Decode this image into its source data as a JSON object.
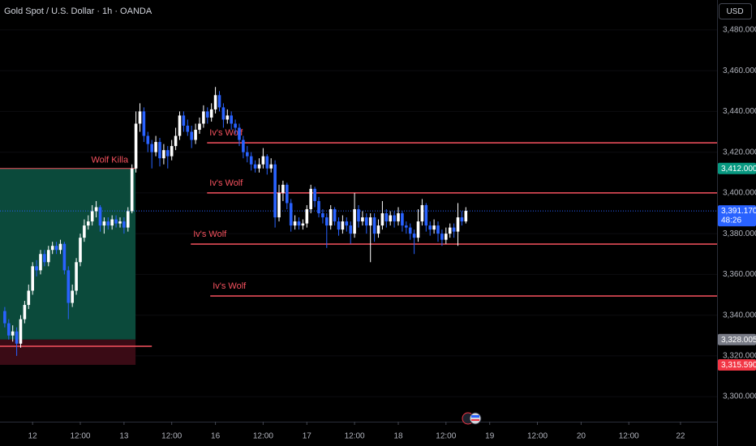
{
  "header": {
    "title": "Gold Spot / U.S. Dollar · 1h · OANDA",
    "currency": "USD"
  },
  "chart_data": {
    "type": "candlestick",
    "xlim": [
      -8.2,
      172.2
    ],
    "ylim": [
      3287.7,
      3494.7
    ],
    "xticks": [
      {
        "value": 0,
        "label": "12"
      },
      {
        "value": 12,
        "label": "12:00"
      },
      {
        "value": 23,
        "label": "13"
      },
      {
        "value": 35,
        "label": "12:00"
      },
      {
        "value": 46,
        "label": "16"
      },
      {
        "value": 58,
        "label": "12:00"
      },
      {
        "value": 69,
        "label": "17"
      },
      {
        "value": 81,
        "label": "12:00"
      },
      {
        "value": 92,
        "label": "18"
      },
      {
        "value": 104,
        "label": "12:00"
      },
      {
        "value": 115,
        "label": "19"
      },
      {
        "value": 127,
        "label": "12:00"
      },
      {
        "value": 138,
        "label": "20"
      },
      {
        "value": 150,
        "label": "12:00"
      },
      {
        "value": 163,
        "label": "22"
      }
    ],
    "yticks": [
      {
        "value": 3300,
        "label": "3,300.000"
      },
      {
        "value": 3320,
        "label": "3,320.000"
      },
      {
        "value": 3340,
        "label": "3,340.000"
      },
      {
        "value": 3360,
        "label": "3,360.000"
      },
      {
        "value": 3380,
        "label": "3,380.000"
      },
      {
        "value": 3400,
        "label": "3,400.000"
      },
      {
        "value": 3420,
        "label": "3,420.000"
      },
      {
        "value": 3440,
        "label": "3,440.000"
      },
      {
        "value": 3460,
        "label": "3,460.000"
      },
      {
        "value": 3480,
        "label": "3,480.000"
      }
    ],
    "up_color": "#ffffff",
    "down_color": "#2962ff",
    "candles": [
      [
        -7,
        3342,
        3344,
        3334,
        3336
      ],
      [
        -6,
        3336,
        3338,
        3328,
        3330
      ],
      [
        -5,
        3330,
        3335,
        3327,
        3332
      ],
      [
        -4,
        3332,
        3334,
        3320,
        3326
      ],
      [
        -3,
        3326,
        3340,
        3324,
        3338
      ],
      [
        -2,
        3338,
        3347,
        3336,
        3345
      ],
      [
        -1,
        3345,
        3355,
        3343,
        3352
      ],
      [
        0,
        3352,
        3366,
        3350,
        3364
      ],
      [
        1,
        3364,
        3367,
        3359,
        3362
      ],
      [
        2,
        3362,
        3372,
        3360,
        3370
      ],
      [
        3,
        3370,
        3372,
        3364,
        3366
      ],
      [
        4,
        3366,
        3374,
        3364,
        3372
      ],
      [
        5,
        3372,
        3376,
        3370,
        3374
      ],
      [
        6,
        3374,
        3376,
        3370,
        3372
      ],
      [
        7,
        3372,
        3377,
        3370,
        3375
      ],
      [
        8,
        3375,
        3376,
        3360,
        3362
      ],
      [
        9,
        3362,
        3364,
        3338,
        3346
      ],
      [
        10,
        3346,
        3355,
        3344,
        3352
      ],
      [
        11,
        3352,
        3368,
        3350,
        3366
      ],
      [
        12,
        3366,
        3380,
        3364,
        3378
      ],
      [
        13,
        3378,
        3387,
        3376,
        3384
      ],
      [
        14,
        3384,
        3389,
        3382,
        3386
      ],
      [
        15,
        3386,
        3394,
        3384,
        3391
      ],
      [
        16,
        3391,
        3396,
        3388,
        3393
      ],
      [
        17,
        3393,
        3394,
        3381,
        3384
      ],
      [
        18,
        3384,
        3388,
        3380,
        3386
      ],
      [
        19,
        3386,
        3388,
        3382,
        3384
      ],
      [
        20,
        3384,
        3389,
        3382,
        3387
      ],
      [
        21,
        3387,
        3389,
        3383,
        3385
      ],
      [
        22,
        3385,
        3388,
        3383,
        3386
      ],
      [
        23,
        3386,
        3388,
        3380,
        3383
      ],
      [
        24,
        3383,
        3393,
        3381,
        3391
      ],
      [
        25,
        3391,
        3414,
        3390,
        3412
      ],
      [
        26,
        3412,
        3440,
        3410,
        3434
      ],
      [
        27,
        3434,
        3444,
        3430,
        3440
      ],
      [
        28,
        3440,
        3442,
        3425,
        3428
      ],
      [
        29,
        3428,
        3430,
        3420,
        3424
      ],
      [
        30,
        3424,
        3426,
        3412,
        3420
      ],
      [
        31,
        3420,
        3428,
        3418,
        3425
      ],
      [
        32,
        3425,
        3427,
        3413,
        3417
      ],
      [
        33,
        3417,
        3424,
        3414,
        3421
      ],
      [
        34,
        3421,
        3423,
        3412,
        3418
      ],
      [
        35,
        3418,
        3426,
        3416,
        3423
      ],
      [
        36,
        3423,
        3432,
        3421,
        3428
      ],
      [
        37,
        3428,
        3440,
        3426,
        3438
      ],
      [
        38,
        3438,
        3440,
        3430,
        3433
      ],
      [
        39,
        3433,
        3436,
        3428,
        3430
      ],
      [
        40,
        3430,
        3433,
        3422,
        3426
      ],
      [
        41,
        3426,
        3434,
        3424,
        3431
      ],
      [
        42,
        3431,
        3437,
        3429,
        3434
      ],
      [
        43,
        3434,
        3443,
        3432,
        3440
      ],
      [
        44,
        3440,
        3442,
        3434,
        3437
      ],
      [
        45,
        3437,
        3444,
        3435,
        3441
      ],
      [
        46,
        3441,
        3452,
        3439,
        3448
      ],
      [
        47,
        3448,
        3450,
        3440,
        3442
      ],
      [
        48,
        3442,
        3444,
        3432,
        3436
      ],
      [
        49,
        3436,
        3441,
        3434,
        3438
      ],
      [
        50,
        3438,
        3440,
        3431,
        3434
      ],
      [
        51,
        3434,
        3436,
        3429,
        3432
      ],
      [
        52,
        3432,
        3434,
        3423,
        3426
      ],
      [
        53,
        3426,
        3428,
        3417,
        3420
      ],
      [
        54,
        3420,
        3423,
        3415,
        3418
      ],
      [
        55,
        3418,
        3420,
        3411,
        3414
      ],
      [
        56,
        3414,
        3416,
        3410,
        3412
      ],
      [
        57,
        3412,
        3417,
        3410,
        3414
      ],
      [
        58,
        3414,
        3422,
        3412,
        3418
      ],
      [
        59,
        3418,
        3419,
        3409,
        3412
      ],
      [
        60,
        3412,
        3417,
        3410,
        3414
      ],
      [
        61,
        3414,
        3416,
        3383,
        3388
      ],
      [
        62,
        3388,
        3404,
        3386,
        3400
      ],
      [
        63,
        3400,
        3406,
        3396,
        3404
      ],
      [
        64,
        3404,
        3405,
        3392,
        3395
      ],
      [
        65,
        3395,
        3397,
        3381,
        3384
      ],
      [
        66,
        3384,
        3389,
        3382,
        3386
      ],
      [
        67,
        3386,
        3388,
        3382,
        3384
      ],
      [
        68,
        3384,
        3387,
        3382,
        3385
      ],
      [
        69,
        3385,
        3394,
        3383,
        3392
      ],
      [
        70,
        3392,
        3404,
        3390,
        3402
      ],
      [
        71,
        3402,
        3403,
        3393,
        3396
      ],
      [
        72,
        3396,
        3398,
        3388,
        3390
      ],
      [
        73,
        3390,
        3392,
        3385,
        3388
      ],
      [
        74,
        3388,
        3390,
        3373,
        3384
      ],
      [
        75,
        3384,
        3394,
        3382,
        3392
      ],
      [
        76,
        3392,
        3393,
        3384,
        3386
      ],
      [
        77,
        3386,
        3388,
        3379,
        3382
      ],
      [
        78,
        3382,
        3389,
        3380,
        3386
      ],
      [
        79,
        3386,
        3388,
        3381,
        3384
      ],
      [
        80,
        3384,
        3386,
        3375,
        3380
      ],
      [
        81,
        3380,
        3400,
        3378,
        3392
      ],
      [
        82,
        3392,
        3394,
        3383,
        3386
      ],
      [
        83,
        3386,
        3391,
        3384,
        3388
      ],
      [
        84,
        3388,
        3390,
        3380,
        3384
      ],
      [
        85,
        3384,
        3390,
        3366,
        3388
      ],
      [
        86,
        3388,
        3390,
        3376,
        3380
      ],
      [
        87,
        3380,
        3387,
        3378,
        3384
      ],
      [
        88,
        3384,
        3396,
        3382,
        3390
      ],
      [
        89,
        3390,
        3392,
        3383,
        3386
      ],
      [
        90,
        3386,
        3391,
        3384,
        3389
      ],
      [
        91,
        3389,
        3391,
        3383,
        3386
      ],
      [
        92,
        3386,
        3393,
        3384,
        3390
      ],
      [
        93,
        3390,
        3391,
        3381,
        3384
      ],
      [
        94,
        3384,
        3386,
        3380,
        3383
      ],
      [
        95,
        3383,
        3385,
        3377,
        3380
      ],
      [
        96,
        3380,
        3382,
        3370,
        3378
      ],
      [
        97,
        3378,
        3392,
        3376,
        3386
      ],
      [
        98,
        3386,
        3397,
        3384,
        3394
      ],
      [
        99,
        3394,
        3395,
        3381,
        3384
      ],
      [
        100,
        3384,
        3386,
        3379,
        3382
      ],
      [
        101,
        3382,
        3387,
        3380,
        3384
      ],
      [
        102,
        3384,
        3386,
        3376,
        3380
      ],
      [
        103,
        3380,
        3382,
        3374,
        3377
      ],
      [
        104,
        3377,
        3383,
        3375,
        3380
      ],
      [
        105,
        3380,
        3385,
        3378,
        3383
      ],
      [
        106,
        3383,
        3385,
        3378,
        3381
      ],
      [
        107,
        3381,
        3395,
        3374,
        3388
      ],
      [
        108,
        3388,
        3391,
        3384,
        3386
      ],
      [
        109,
        3386,
        3393,
        3385,
        3391.17
      ]
    ],
    "last_price": {
      "value": 3391.17,
      "label": "3,391.170",
      "countdown": "48:26",
      "color": "#2962ff"
    },
    "zone": {
      "label": "Wolf Killa",
      "top": 3412,
      "middle": 3328.005,
      "bottom": 3315.59,
      "x_end": 25.9,
      "top_color": "#0b4a3b",
      "bottom_color": "#3a0b15",
      "line_color": "#f7525f"
    },
    "levels": [
      {
        "label": "Iv's Wolf",
        "value": 3424.6,
        "x_start": 43.9
      },
      {
        "label": "Iv's Wolf",
        "value": 3400,
        "x_start": 43.9
      },
      {
        "label": "Iv's Wolf",
        "value": 3374.9,
        "x_start": 39.8
      },
      {
        "label": "Iv's Wolf",
        "value": 3349.4,
        "x_start": 44.7
      }
    ],
    "level_color": "#f7525f",
    "lines": [
      {
        "value": 3324.7,
        "x_end": 30
      }
    ],
    "price_tags": [
      {
        "value": 3412,
        "label": "3,412.000",
        "color": "#089981"
      },
      {
        "value": 3328.005,
        "label": "3,328.005",
        "color": "#787b86"
      },
      {
        "value": 3315.59,
        "label": "3,315.590",
        "color": "#f23645"
      }
    ]
  }
}
